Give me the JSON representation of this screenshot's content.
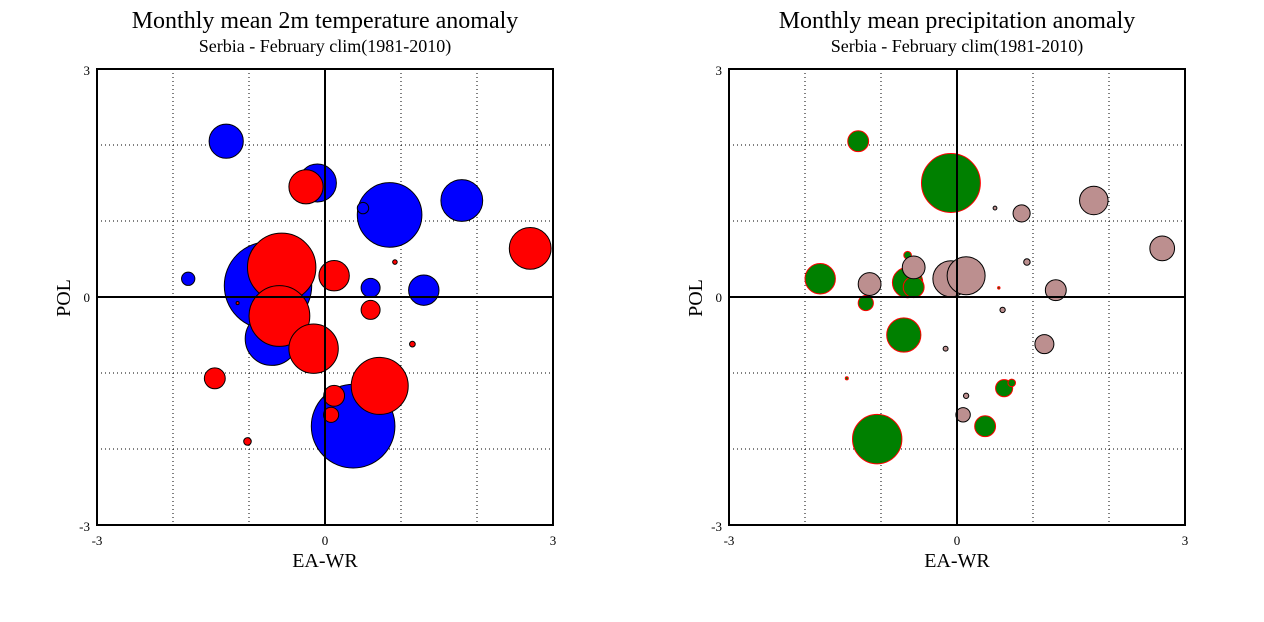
{
  "chart_data": [
    {
      "type": "scatter",
      "title": "Monthly mean 2m temperature anomaly",
      "subtitle": "Serbia - February  clim(1981-2010)",
      "xlabel": "EA-WR",
      "ylabel": "POL",
      "xlim": [
        -3,
        3
      ],
      "ylim": [
        -3,
        3
      ],
      "x_ticks": [
        "-3",
        "0",
        "3"
      ],
      "y_ticks": [
        "-3",
        "0",
        "3"
      ],
      "grid": true,
      "colors": {
        "positive": "#0000ff",
        "negative": "#ff0000"
      },
      "series": [
        {
          "color": "#0000ff",
          "points": [
            {
              "x": -1.3,
              "y": 2.05,
              "size": 0.9
            },
            {
              "x": -0.1,
              "y": 1.5,
              "size": 1.0
            },
            {
              "x": 0.85,
              "y": 1.08,
              "size": 1.7
            },
            {
              "x": 1.8,
              "y": 1.27,
              "size": 1.1
            },
            {
              "x": 0.5,
              "y": 1.17,
              "size": 0.3
            },
            {
              "x": -1.8,
              "y": 0.24,
              "size": 0.35
            },
            {
              "x": -1.15,
              "y": 0.17,
              "size": 0.15
            },
            {
              "x": -0.7,
              "y": 0.5,
              "size": 0.9
            },
            {
              "x": -0.75,
              "y": 0.15,
              "size": 2.3
            },
            {
              "x": 0.6,
              "y": 0.12,
              "size": 0.5
            },
            {
              "x": 1.3,
              "y": 0.09,
              "size": 0.8
            },
            {
              "x": -0.7,
              "y": -0.55,
              "size": 1.4
            },
            {
              "x": 0.37,
              "y": -1.7,
              "size": 2.2
            }
          ]
        },
        {
          "color": "#ff0000",
          "points": [
            {
              "x": -0.25,
              "y": 1.45,
              "size": 0.9
            },
            {
              "x": 0.12,
              "y": 0.28,
              "size": 0.8
            },
            {
              "x": 0.92,
              "y": 0.46,
              "size": 0.12
            },
            {
              "x": 2.7,
              "y": 0.64,
              "size": 1.1
            },
            {
              "x": -0.57,
              "y": 0.39,
              "size": 1.8
            },
            {
              "x": -0.6,
              "y": -0.25,
              "size": 1.6
            },
            {
              "x": -1.15,
              "y": -0.08,
              "size": 0.08
            },
            {
              "x": 0.6,
              "y": -0.17,
              "size": 0.5
            },
            {
              "x": -0.15,
              "y": -0.68,
              "size": 1.3
            },
            {
              "x": 1.15,
              "y": -0.62,
              "size": 0.15
            },
            {
              "x": -1.45,
              "y": -1.07,
              "size": 0.55
            },
            {
              "x": 0.72,
              "y": -1.17,
              "size": 1.5
            },
            {
              "x": 0.12,
              "y": -1.3,
              "size": 0.55
            },
            {
              "x": 0.08,
              "y": -1.55,
              "size": 0.4
            },
            {
              "x": -1.02,
              "y": -1.9,
              "size": 0.2
            }
          ]
        }
      ]
    },
    {
      "type": "scatter",
      "title": "Monthly mean precipitation anomaly",
      "subtitle": "Serbia - February  clim(1981-2010)",
      "xlabel": "EA-WR",
      "ylabel": "POL",
      "xlim": [
        -3,
        3
      ],
      "ylim": [
        -3,
        3
      ],
      "x_ticks": [
        "-3",
        "0",
        "3"
      ],
      "y_ticks": [
        "-3",
        "0",
        "3"
      ],
      "grid": true,
      "colors": {
        "wet": "#008000",
        "wet_outline": "#ff0000",
        "dry": "#bc8f8f",
        "dry_outline": "#000000"
      },
      "series": [
        {
          "color": "#008000",
          "outline": "#ff0000",
          "points": [
            {
              "x": -1.3,
              "y": 2.05,
              "size": 0.55
            },
            {
              "x": -0.08,
              "y": 1.5,
              "size": 1.55
            },
            {
              "x": -1.8,
              "y": 0.24,
              "size": 0.8
            },
            {
              "x": -1.2,
              "y": -0.08,
              "size": 0.4
            },
            {
              "x": -0.65,
              "y": 0.55,
              "size": 0.2
            },
            {
              "x": -0.65,
              "y": 0.19,
              "size": 0.8
            },
            {
              "x": -0.57,
              "y": 0.13,
              "size": 0.55
            },
            {
              "x": 0.55,
              "y": 0.12,
              "size": 0.06
            },
            {
              "x": -0.7,
              "y": -0.5,
              "size": 0.9
            },
            {
              "x": -1.45,
              "y": -1.07,
              "size": 0.08
            },
            {
              "x": 0.62,
              "y": -1.2,
              "size": 0.45
            },
            {
              "x": 0.72,
              "y": -1.13,
              "size": 0.2
            },
            {
              "x": 0.37,
              "y": -1.7,
              "size": 0.55
            },
            {
              "x": -1.05,
              "y": -1.87,
              "size": 1.3
            }
          ]
        },
        {
          "color": "#bc8f8f",
          "outline": "#000000",
          "points": [
            {
              "x": 0.5,
              "y": 1.17,
              "size": 0.1
            },
            {
              "x": 0.85,
              "y": 1.1,
              "size": 0.45
            },
            {
              "x": 1.8,
              "y": 1.27,
              "size": 0.75
            },
            {
              "x": 2.7,
              "y": 0.64,
              "size": 0.65
            },
            {
              "x": 0.92,
              "y": 0.46,
              "size": 0.17
            },
            {
              "x": -1.15,
              "y": 0.17,
              "size": 0.6
            },
            {
              "x": -0.57,
              "y": 0.39,
              "size": 0.6
            },
            {
              "x": -0.08,
              "y": 0.24,
              "size": 0.95
            },
            {
              "x": 0.12,
              "y": 0.28,
              "size": 1.0
            },
            {
              "x": 0.6,
              "y": -0.17,
              "size": 0.14
            },
            {
              "x": 1.3,
              "y": 0.09,
              "size": 0.55
            },
            {
              "x": -0.15,
              "y": -0.68,
              "size": 0.13
            },
            {
              "x": 1.15,
              "y": -0.62,
              "size": 0.5
            },
            {
              "x": 0.12,
              "y": -1.3,
              "size": 0.14
            },
            {
              "x": 0.08,
              "y": -1.55,
              "size": 0.38
            }
          ]
        }
      ]
    }
  ]
}
